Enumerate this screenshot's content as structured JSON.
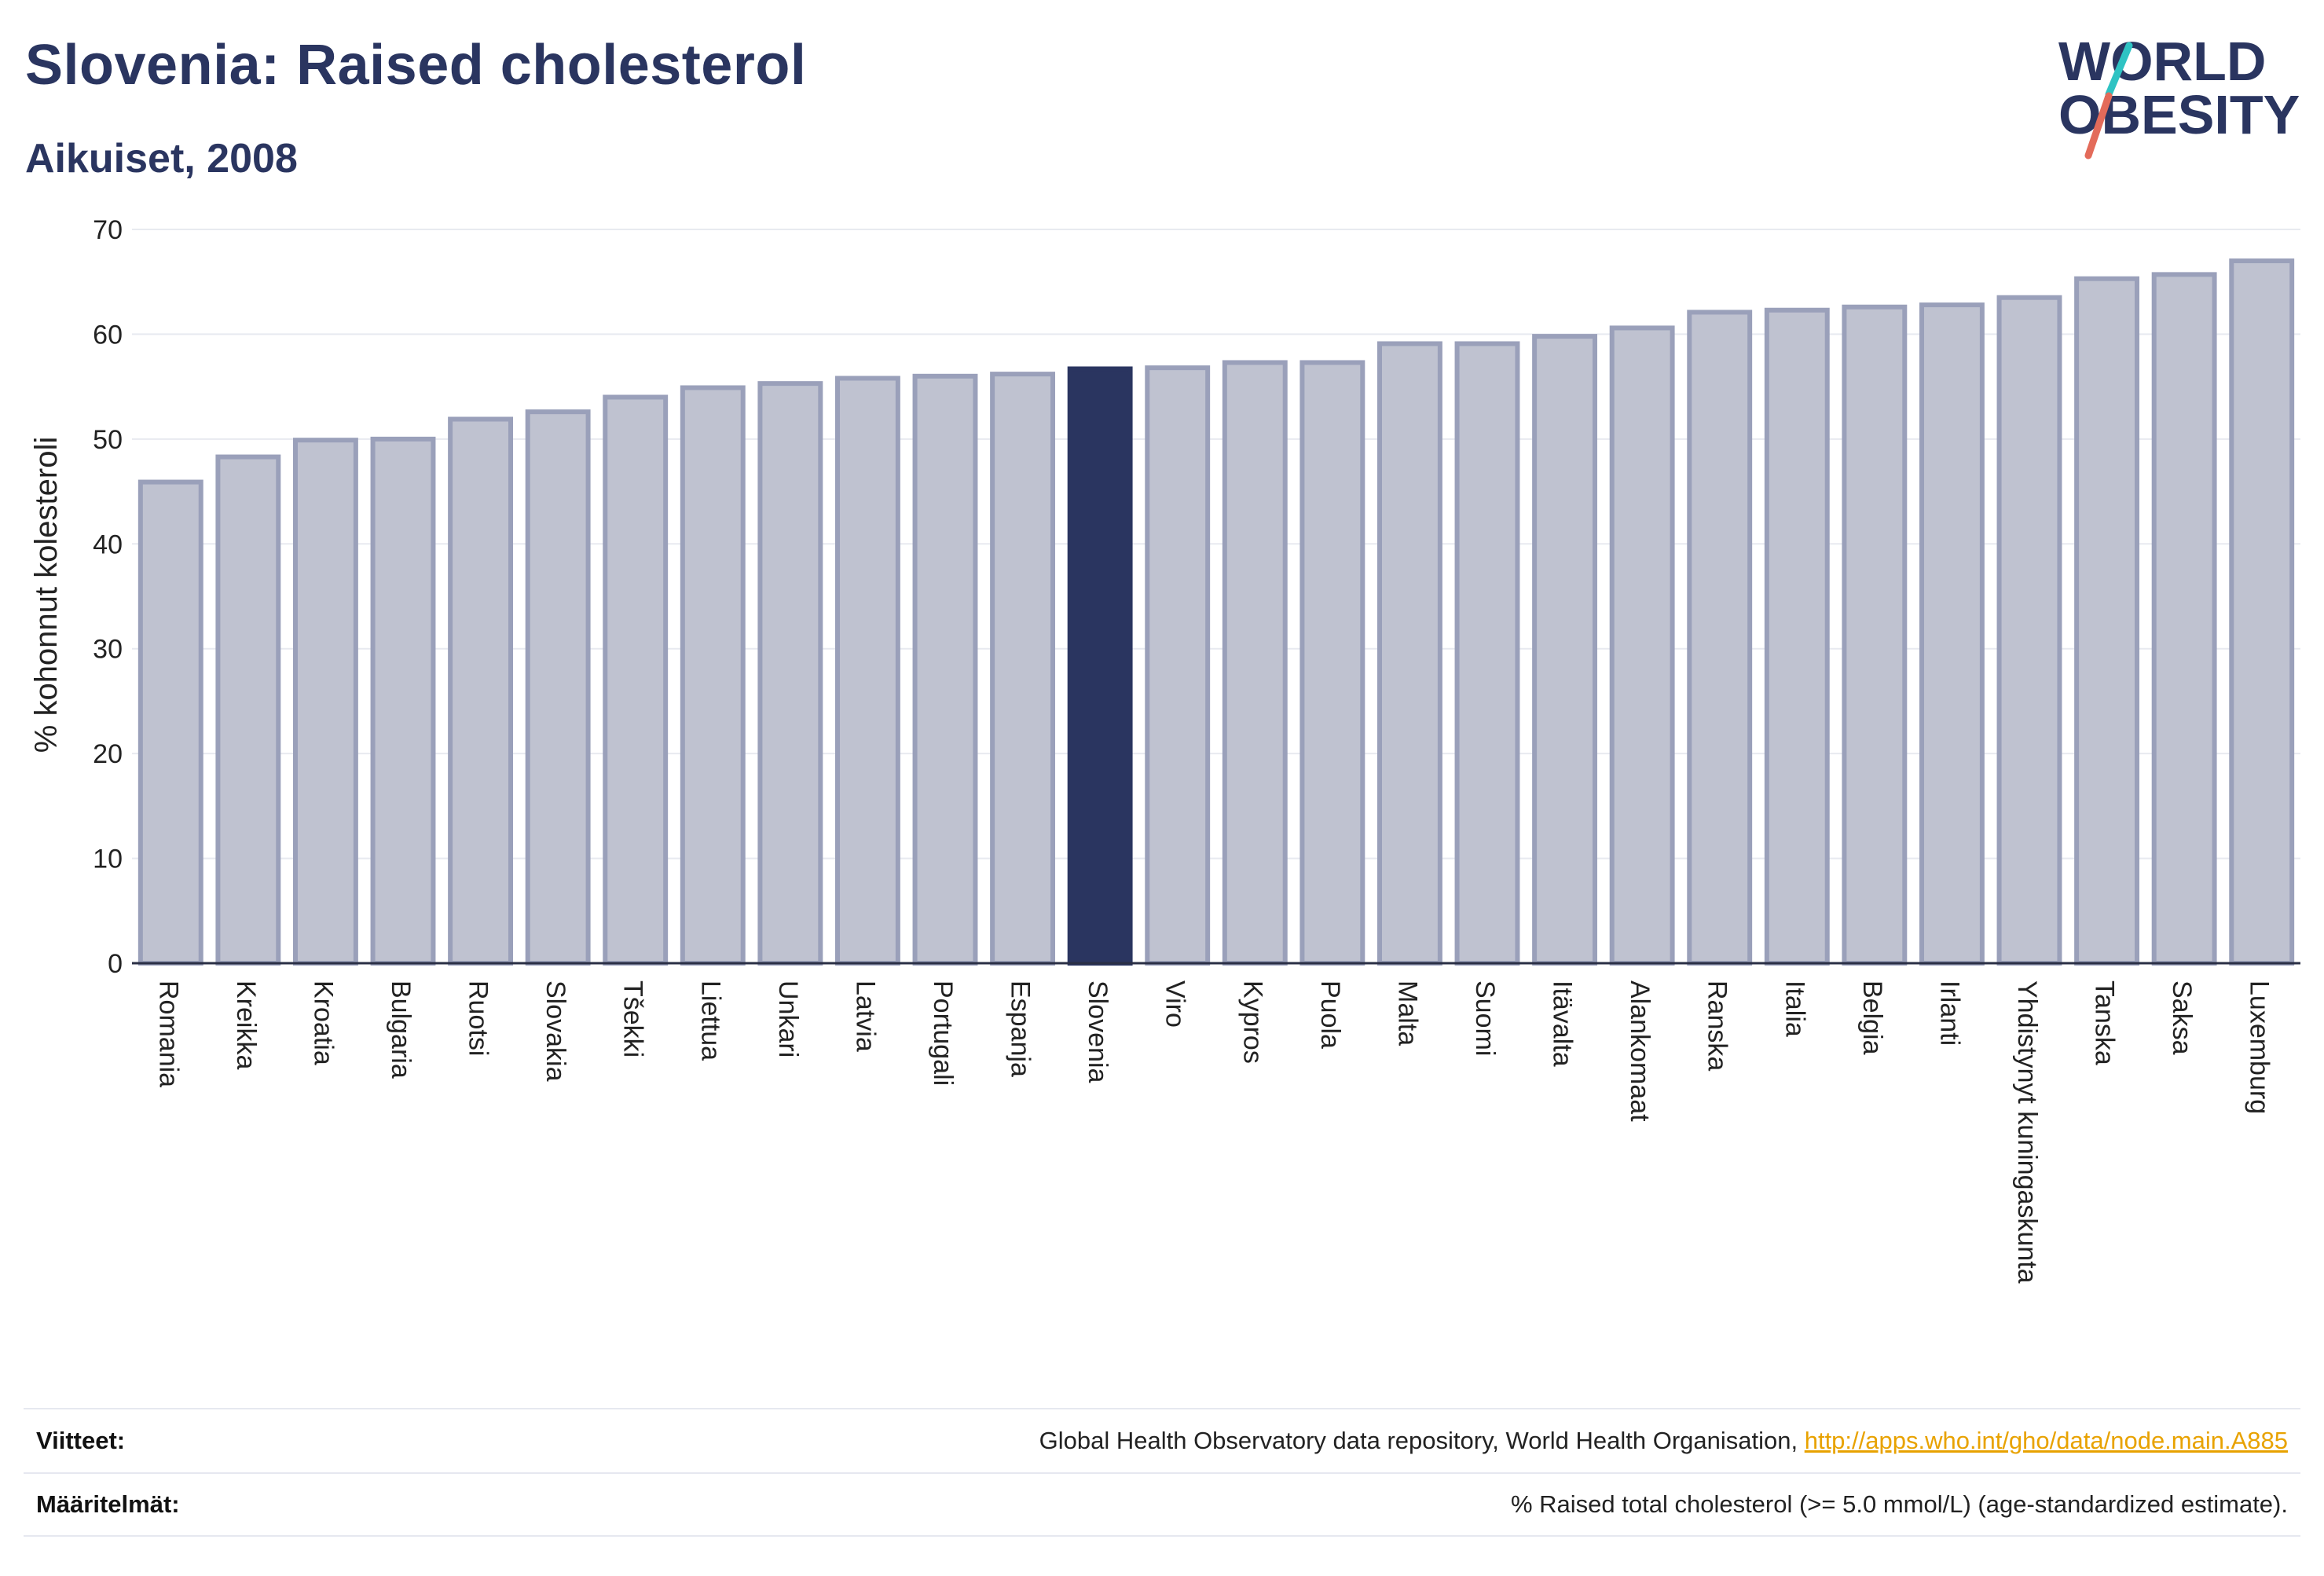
{
  "header": {
    "title": "Slovenia: Raised cholesterol",
    "subtitle": "Aikuiset, 2008"
  },
  "logo": {
    "line1": "WORLD",
    "line2": "OBESITY"
  },
  "colors": {
    "title": "#2a3560",
    "bar_default": "#bfc2d0",
    "bar_default_stroke": "#9aa0ba",
    "bar_highlight": "#2a3560",
    "logo_slash_top": "#2fc3c3",
    "logo_slash_bottom": "#e36b5a",
    "grid": "#e8eaf0",
    "link": "#e8a200"
  },
  "chart_data": {
    "type": "bar",
    "ylabel": "% kohonnut kolesteroli",
    "ylim": [
      0,
      70
    ],
    "yticks": [
      0,
      10,
      20,
      30,
      40,
      50,
      60,
      70
    ],
    "grid": true,
    "highlight": "Slovenia",
    "categories": [
      "Romania",
      "Kreikka",
      "Kroatia",
      "Bulgaria",
      "Ruotsi",
      "Slovakia",
      "Tšekki",
      "Liettua",
      "Unkari",
      "Latvia",
      "Portugali",
      "Espanja",
      "Slovenia",
      "Viro",
      "Kypros",
      "Puola",
      "Malta",
      "Suomi",
      "Itävalta",
      "Alankomaat",
      "Ranska",
      "Italia",
      "Belgia",
      "Irlanti",
      "Yhdistynyt kuningaskunta",
      "Tanska",
      "Saksa",
      "Luxemburg"
    ],
    "values": [
      45.9,
      48.3,
      49.9,
      50.0,
      51.9,
      52.6,
      54.0,
      54.9,
      55.3,
      55.8,
      56.0,
      56.2,
      56.7,
      56.8,
      57.3,
      57.3,
      59.1,
      59.1,
      59.8,
      60.6,
      62.1,
      62.3,
      62.6,
      62.8,
      63.5,
      65.3,
      65.7,
      67.0
    ]
  },
  "footer": {
    "references_label": "Viitteet:",
    "references_text": "Global Health Observatory data repository, World Health Organisation, ",
    "references_link": "http://apps.who.int/gho/data/node.main.A885",
    "definitions_label": "Määritelmät:",
    "definitions_text": "% Raised total cholesterol (>= 5.0 mmol/L) (age-standardized estimate)."
  }
}
